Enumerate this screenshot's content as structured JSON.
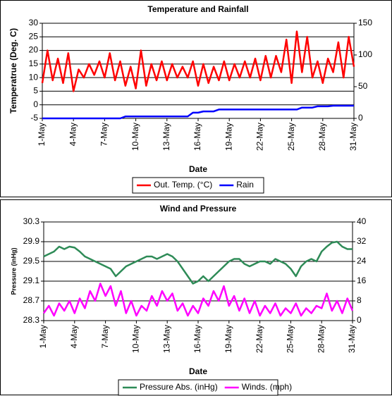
{
  "chart_data": [
    {
      "type": "line",
      "title": "Temperature and Rainfall",
      "x_label": "Date",
      "y_label": "Temperatrue (Deg. C)",
      "x": [
        1,
        1.5,
        2,
        2.5,
        3,
        3.5,
        4,
        4.5,
        5,
        5.5,
        6,
        6.5,
        7,
        7.5,
        8,
        8.5,
        9,
        9.5,
        10,
        10.5,
        11,
        11.5,
        12,
        12.5,
        13,
        13.5,
        14,
        14.5,
        15,
        15.5,
        16,
        16.5,
        17,
        17.5,
        18,
        18.5,
        19,
        19.5,
        20,
        20.5,
        21,
        21.5,
        22,
        22.5,
        23,
        23.5,
        24,
        24.5,
        25,
        25.5,
        26,
        26.5,
        27,
        27.5,
        28,
        28.5,
        29,
        29.5,
        30,
        30.5,
        31
      ],
      "xlim": [
        1,
        31
      ],
      "xticks": [
        {
          "value": 1,
          "label": "1-May"
        },
        {
          "value": 4,
          "label": "4-May"
        },
        {
          "value": 7,
          "label": "7-May"
        },
        {
          "value": 10,
          "label": "10-May"
        },
        {
          "value": 13,
          "label": "13-May"
        },
        {
          "value": 16,
          "label": "16-May"
        },
        {
          "value": 19,
          "label": "19-May"
        },
        {
          "value": 22,
          "label": "22-May"
        },
        {
          "value": 25,
          "label": "25-May"
        },
        {
          "value": 28,
          "label": "28-May"
        },
        {
          "value": 31,
          "label": "31-May"
        }
      ],
      "ylim": [
        -5,
        30
      ],
      "yticks": [
        -5,
        0,
        5,
        10,
        15,
        20,
        25,
        30
      ],
      "y2lim": [
        0,
        150
      ],
      "y2ticks": [
        0,
        50,
        100,
        150
      ],
      "grid": true,
      "series": [
        {
          "name": "Out. Temp. (°C)",
          "color": "#ff0000",
          "values": [
            8,
            20,
            9,
            17,
            8,
            19,
            5,
            13,
            10,
            15,
            11,
            16,
            10,
            19,
            9,
            16,
            7,
            14,
            6,
            20,
            7,
            15,
            9,
            16,
            9,
            15,
            10,
            14,
            10,
            16,
            7,
            15,
            8,
            14,
            9,
            16,
            9,
            15,
            10,
            16,
            10,
            17,
            9,
            18,
            10,
            18,
            12,
            24,
            8,
            27,
            12,
            25,
            10,
            16,
            8,
            17,
            12,
            23,
            10,
            25,
            14
          ]
        },
        {
          "name": "Rain",
          "color": "#0000ff",
          "axis": "y2",
          "values": [
            0,
            0,
            0,
            0,
            0,
            0,
            0,
            0,
            0,
            0,
            0,
            0,
            0,
            0,
            0,
            0,
            3,
            3,
            3,
            3,
            3,
            3,
            3,
            3,
            3,
            3,
            3,
            3,
            3,
            9,
            9,
            11,
            11,
            11,
            14,
            14,
            14,
            14,
            14,
            14,
            14,
            14,
            14,
            14,
            14,
            14,
            14,
            14,
            14,
            14,
            17,
            17,
            17,
            19,
            19,
            19,
            20,
            20,
            20,
            20,
            20
          ]
        }
      ]
    },
    {
      "type": "line",
      "title": "Wind and Pressure",
      "x_label": "Date",
      "y_label": "Pressure (inHg)",
      "x": [
        1,
        1.5,
        2,
        2.5,
        3,
        3.5,
        4,
        4.5,
        5,
        5.5,
        6,
        6.5,
        7,
        7.5,
        8,
        8.5,
        9,
        9.5,
        10,
        10.5,
        11,
        11.5,
        12,
        12.5,
        13,
        13.5,
        14,
        14.5,
        15,
        15.5,
        16,
        16.5,
        17,
        17.5,
        18,
        18.5,
        19,
        19.5,
        20,
        20.5,
        21,
        21.5,
        22,
        22.5,
        23,
        23.5,
        24,
        24.5,
        25,
        25.5,
        26,
        26.5,
        27,
        27.5,
        28,
        28.5,
        29,
        29.5,
        30,
        30.5,
        31
      ],
      "xlim": [
        1,
        31
      ],
      "xticks": [
        {
          "value": 1,
          "label": "1-May"
        },
        {
          "value": 4,
          "label": "4-May"
        },
        {
          "value": 7,
          "label": "7-May"
        },
        {
          "value": 10,
          "label": "10-May"
        },
        {
          "value": 13,
          "label": "13-May"
        },
        {
          "value": 16,
          "label": "16-May"
        },
        {
          "value": 19,
          "label": "19-May"
        },
        {
          "value": 22,
          "label": "22-May"
        },
        {
          "value": 25,
          "label": "25-May"
        },
        {
          "value": 28,
          "label": "28-May"
        },
        {
          "value": 31,
          "label": "31-May"
        }
      ],
      "ylim": [
        28.3,
        30.3
      ],
      "yticks": [
        28.3,
        28.7,
        29.1,
        29.5,
        29.9,
        30.3
      ],
      "y2lim": [
        0,
        40
      ],
      "y2ticks": [
        0,
        8,
        16,
        24,
        32,
        40
      ],
      "grid": true,
      "series": [
        {
          "name": "Pressure Abs. (inHg)",
          "color": "#2e8b57",
          "values": [
            29.6,
            29.65,
            29.7,
            29.8,
            29.75,
            29.8,
            29.78,
            29.7,
            29.6,
            29.55,
            29.5,
            29.45,
            29.4,
            29.35,
            29.2,
            29.3,
            29.4,
            29.45,
            29.5,
            29.55,
            29.6,
            29.6,
            29.55,
            29.6,
            29.65,
            29.6,
            29.5,
            29.35,
            29.2,
            29.05,
            29.1,
            29.2,
            29.1,
            29.2,
            29.3,
            29.4,
            29.5,
            29.55,
            29.55,
            29.45,
            29.4,
            29.45,
            29.5,
            29.5,
            29.45,
            29.55,
            29.5,
            29.45,
            29.35,
            29.2,
            29.4,
            29.5,
            29.55,
            29.5,
            29.7,
            29.8,
            29.88,
            29.9,
            29.8,
            29.75,
            29.75
          ]
        },
        {
          "name": "Winds. (mph)",
          "color": "#ff00ff",
          "axis": "y2",
          "values": [
            3,
            6,
            2,
            7,
            4,
            8,
            3,
            9,
            5,
            12,
            8,
            15,
            10,
            14,
            6,
            12,
            3,
            8,
            2,
            6,
            4,
            10,
            6,
            12,
            8,
            11,
            4,
            7,
            2,
            6,
            3,
            9,
            6,
            12,
            8,
            14,
            6,
            10,
            4,
            9,
            3,
            8,
            2,
            6,
            3,
            7,
            2,
            5,
            3,
            7,
            2,
            5,
            3,
            6,
            5,
            11,
            4,
            8,
            3,
            9,
            4
          ]
        }
      ]
    }
  ]
}
